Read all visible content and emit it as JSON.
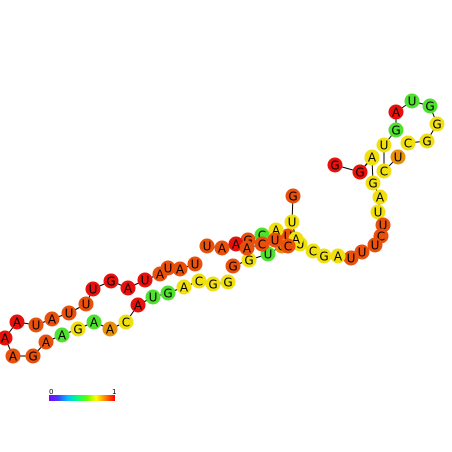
{
  "structure": {
    "nucleotides": [
      {
        "base": "G",
        "color": "#e8100c"
      },
      {
        "base": "A",
        "color": "#f0e010"
      },
      {
        "base": "U",
        "color": "#f0e010"
      },
      {
        "base": "G",
        "color": "#f0e010"
      },
      {
        "base": "A",
        "color": "#f0e010"
      },
      {
        "base": "U",
        "color": "#f0e010"
      },
      {
        "base": "U",
        "color": "#e8500c"
      },
      {
        "base": "C",
        "color": "#e8500c"
      },
      {
        "base": "U",
        "color": "#e8500c"
      },
      {
        "base": "U",
        "color": "#e8500c"
      },
      {
        "base": "U",
        "color": "#e8500c"
      },
      {
        "base": "A",
        "color": "#f0e010"
      },
      {
        "base": "G",
        "color": "#f0e010"
      },
      {
        "base": "C",
        "color": "#f0e010"
      },
      {
        "base": "U",
        "color": "#f0e010"
      },
      {
        "base": "U",
        "color": "#e8500c"
      },
      {
        "base": "A",
        "color": "#f0e010"
      },
      {
        "base": "C",
        "color": "#50e030"
      },
      {
        "base": "G",
        "color": "#e8500c"
      },
      {
        "base": "A",
        "color": "#e8100c"
      },
      {
        "base": "A",
        "color": "#e8500c"
      },
      {
        "base": "U",
        "color": "#e8500c"
      },
      {
        "base": "G",
        "color": "#e8500c"
      },
      {
        "base": "G",
        "color": "#f0e010"
      },
      {
        "base": "U",
        "color": "#50e030"
      },
      {
        "base": "G",
        "color": "#e8900c"
      },
      {
        "base": "A",
        "color": "#f0e010"
      },
      {
        "base": "U",
        "color": "#f0e010"
      },
      {
        "base": "G",
        "color": "#e8500c"
      },
      {
        "base": "G",
        "color": "#f0e010"
      },
      {
        "base": "G",
        "color": "#f0e010"
      },
      {
        "base": "C",
        "color": "#f0e010"
      },
      {
        "base": "A",
        "color": "#f0e010"
      },
      {
        "base": "G",
        "color": "#50e030"
      },
      {
        "base": "U",
        "color": "#50e030"
      },
      {
        "base": "A",
        "color": "#e8100c"
      },
      {
        "base": "C",
        "color": "#f0e010"
      },
      {
        "base": "A",
        "color": "#e8900c"
      },
      {
        "base": "A",
        "color": "#50e030"
      },
      {
        "base": "G",
        "color": "#f0e010"
      },
      {
        "base": "A",
        "color": "#50e030"
      },
      {
        "base": "A",
        "color": "#e8500c"
      },
      {
        "base": "G",
        "color": "#e8500c"
      },
      {
        "base": "A",
        "color": "#e8500c"
      },
      {
        "base": "A",
        "color": "#e8100c"
      },
      {
        "base": "A",
        "color": "#e8100c"
      },
      {
        "base": "U",
        "color": "#e8500c"
      },
      {
        "base": "A",
        "color": "#e8500c"
      },
      {
        "base": "U",
        "color": "#e8500c"
      },
      {
        "base": "U",
        "color": "#e8500c"
      },
      {
        "base": "U",
        "color": "#e8100c"
      },
      {
        "base": "G",
        "color": "#e8100c"
      },
      {
        "base": "A",
        "color": "#e8100c"
      },
      {
        "base": "U",
        "color": "#e8100c"
      },
      {
        "base": "A",
        "color": "#e8500c"
      },
      {
        "base": "U",
        "color": "#e8500c"
      },
      {
        "base": "A",
        "color": "#e8500c"
      },
      {
        "base": "U",
        "color": "#e8500c"
      },
      {
        "base": "A",
        "color": "#e8500c"
      },
      {
        "base": "C",
        "color": "#e8500c"
      },
      {
        "base": "U",
        "color": "#e8500c"
      },
      {
        "base": "C",
        "color": "#e8500c"
      },
      {
        "base": "U",
        "color": "#e8900c"
      },
      {
        "base": "C",
        "color": "#f0e010"
      },
      {
        "base": "U",
        "color": "#f0e010"
      },
      {
        "base": "G",
        "color": "#50e030"
      },
      {
        "base": "A",
        "color": "#e8100c"
      },
      {
        "base": "U",
        "color": "#50e030"
      },
      {
        "base": "G",
        "color": "#50e030"
      },
      {
        "base": "G",
        "color": "#f0e010"
      },
      {
        "base": "G",
        "color": "#f0e010"
      },
      {
        "base": "C",
        "color": "#f0e010"
      },
      {
        "base": "A",
        "color": "#f0e010"
      },
      {
        "base": "G",
        "color": "#e8100c"
      }
    ]
  },
  "legend": {
    "min_label": "0",
    "max_label": "1",
    "gradient": [
      "#8000ff",
      "#4040ff",
      "#00c0ff",
      "#00ff80",
      "#60ff00",
      "#ffff00",
      "#ff8000",
      "#ff0000"
    ]
  }
}
